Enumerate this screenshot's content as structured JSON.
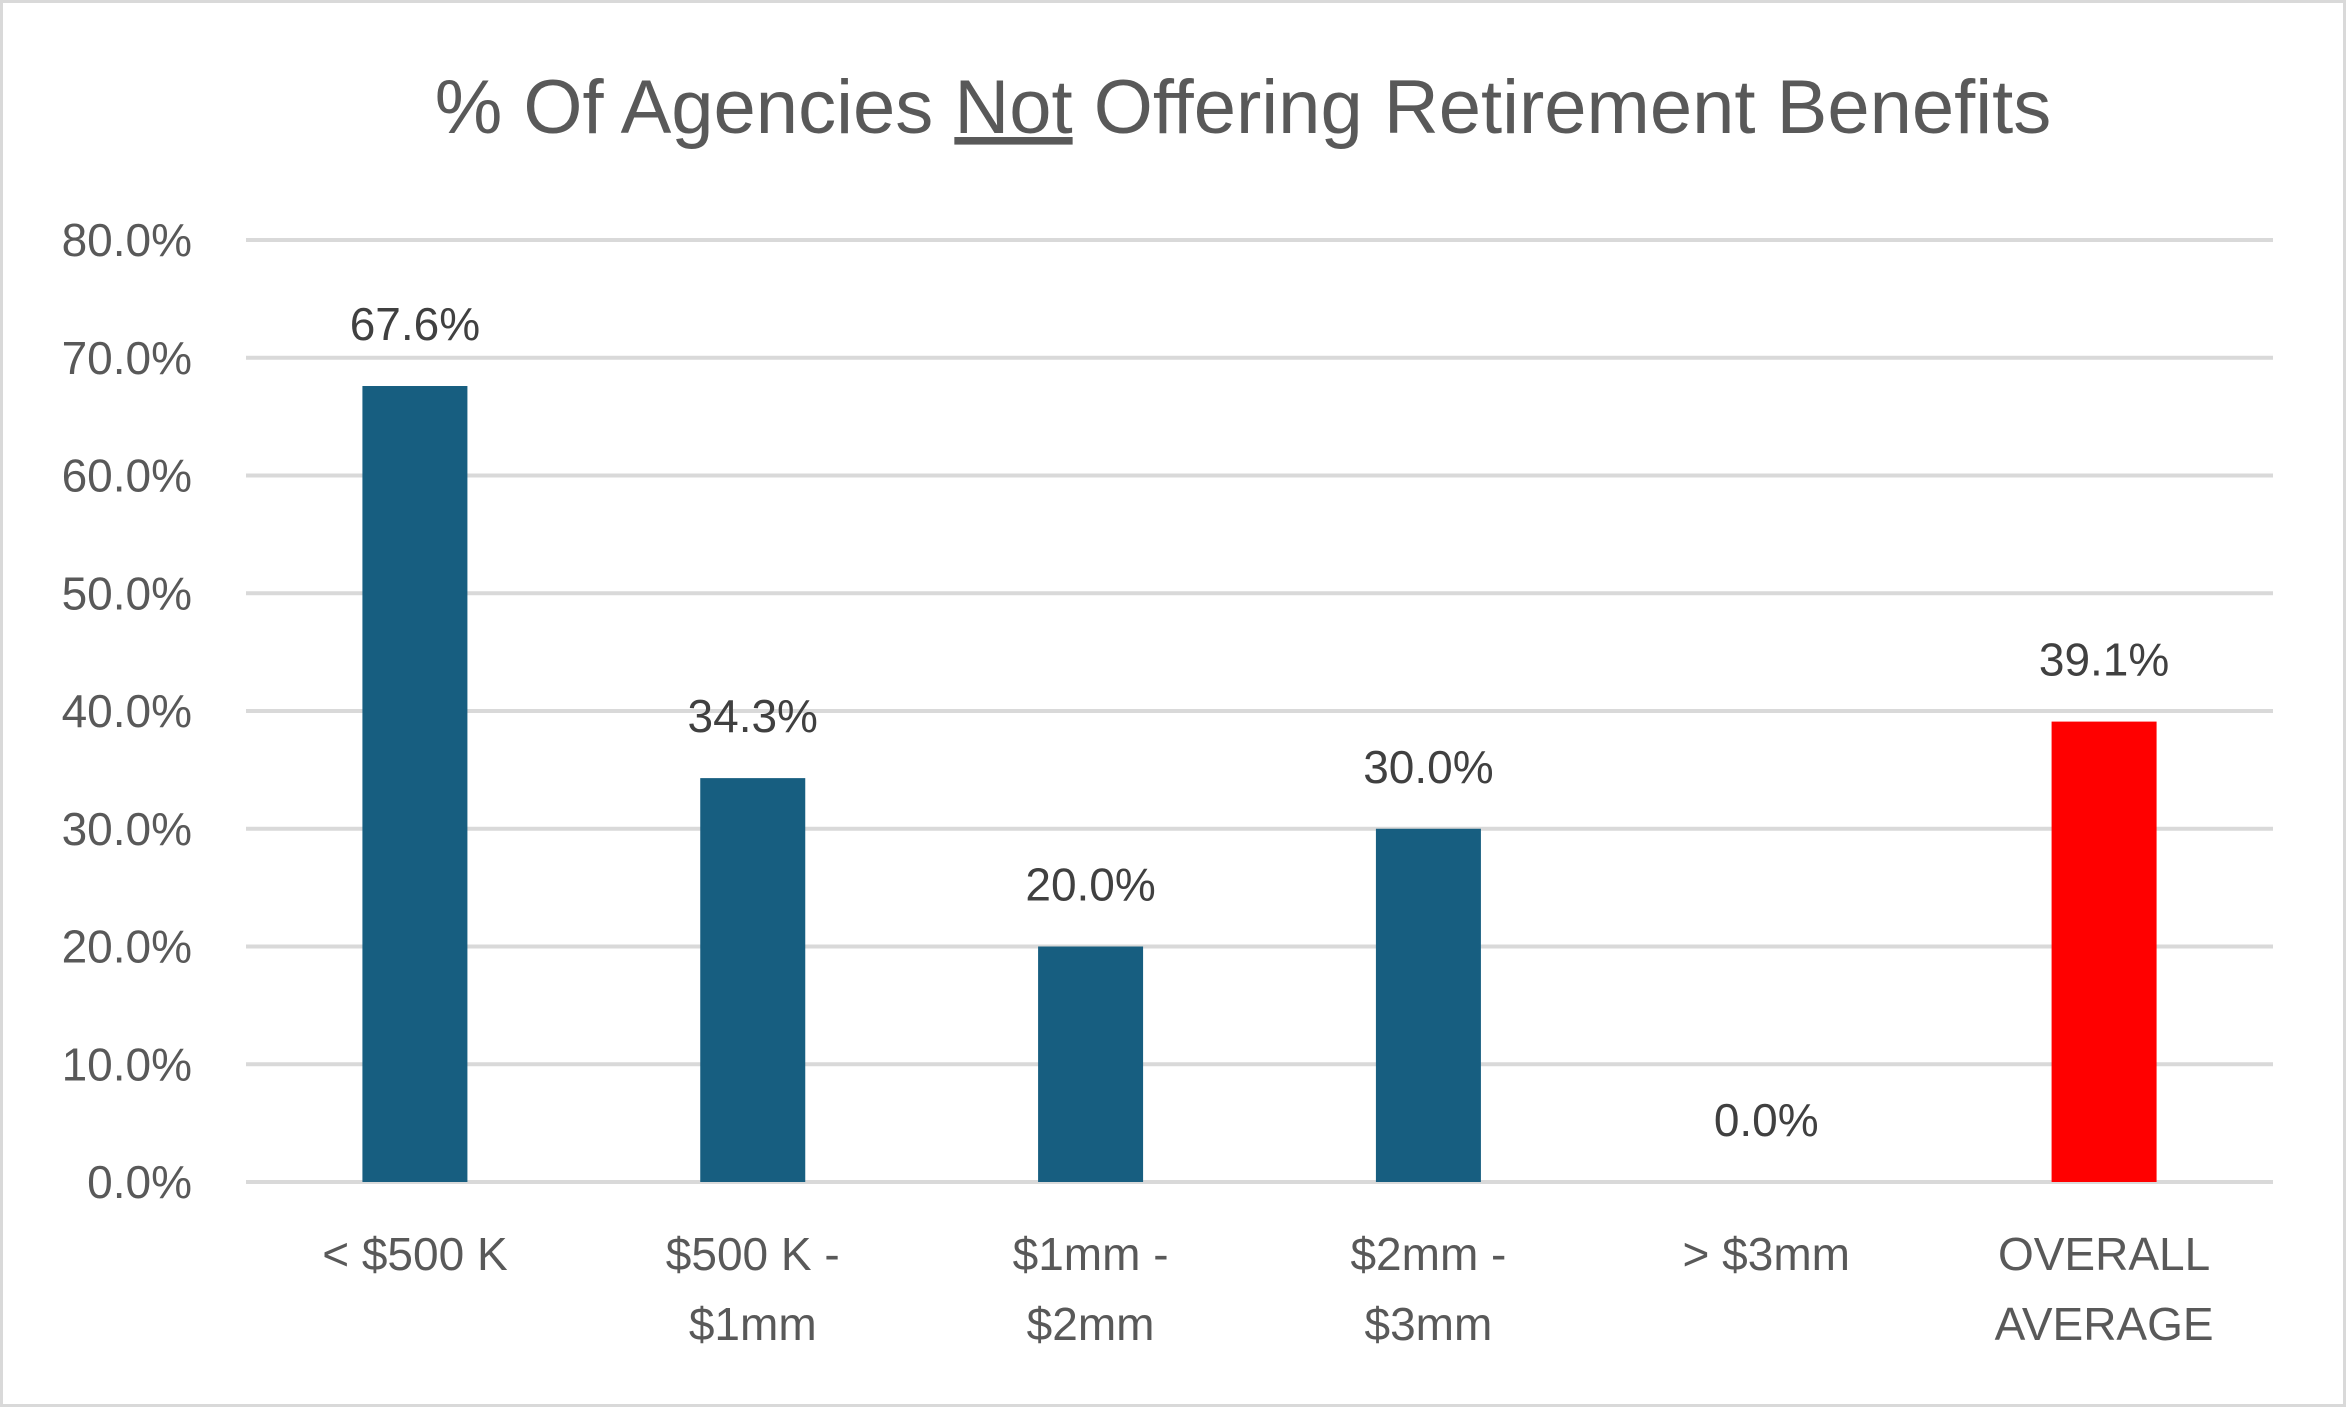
{
  "chart_data": {
    "type": "bar",
    "title": {
      "before": "% Of Agencies ",
      "underlined": "Not",
      "after": " Offering Retirement Benefits"
    },
    "categories": [
      [
        "< $500 K"
      ],
      [
        "$500 K -",
        "$1mm"
      ],
      [
        "$1mm -",
        "$2mm"
      ],
      [
        "$2mm -",
        "$3mm"
      ],
      [
        "> $3mm"
      ],
      [
        "OVERALL",
        "AVERAGE"
      ]
    ],
    "values": [
      67.6,
      34.3,
      20.0,
      30.0,
      0.0,
      39.1
    ],
    "data_labels": [
      "67.6%",
      "34.3%",
      "20.0%",
      "30.0%",
      "0.0%",
      "39.1%"
    ],
    "bar_colors": [
      "#175e80",
      "#175e80",
      "#175e80",
      "#175e80",
      "#175e80",
      "#ff0000"
    ],
    "ylim": [
      0,
      80
    ],
    "y_ticks": [
      "0.0%",
      "10.0%",
      "20.0%",
      "30.0%",
      "40.0%",
      "50.0%",
      "60.0%",
      "70.0%",
      "80.0%"
    ],
    "y_tick_values": [
      0,
      10,
      20,
      30,
      40,
      50,
      60,
      70,
      80
    ],
    "grid": true,
    "legend": "none",
    "xlabel": "",
    "ylabel": ""
  }
}
